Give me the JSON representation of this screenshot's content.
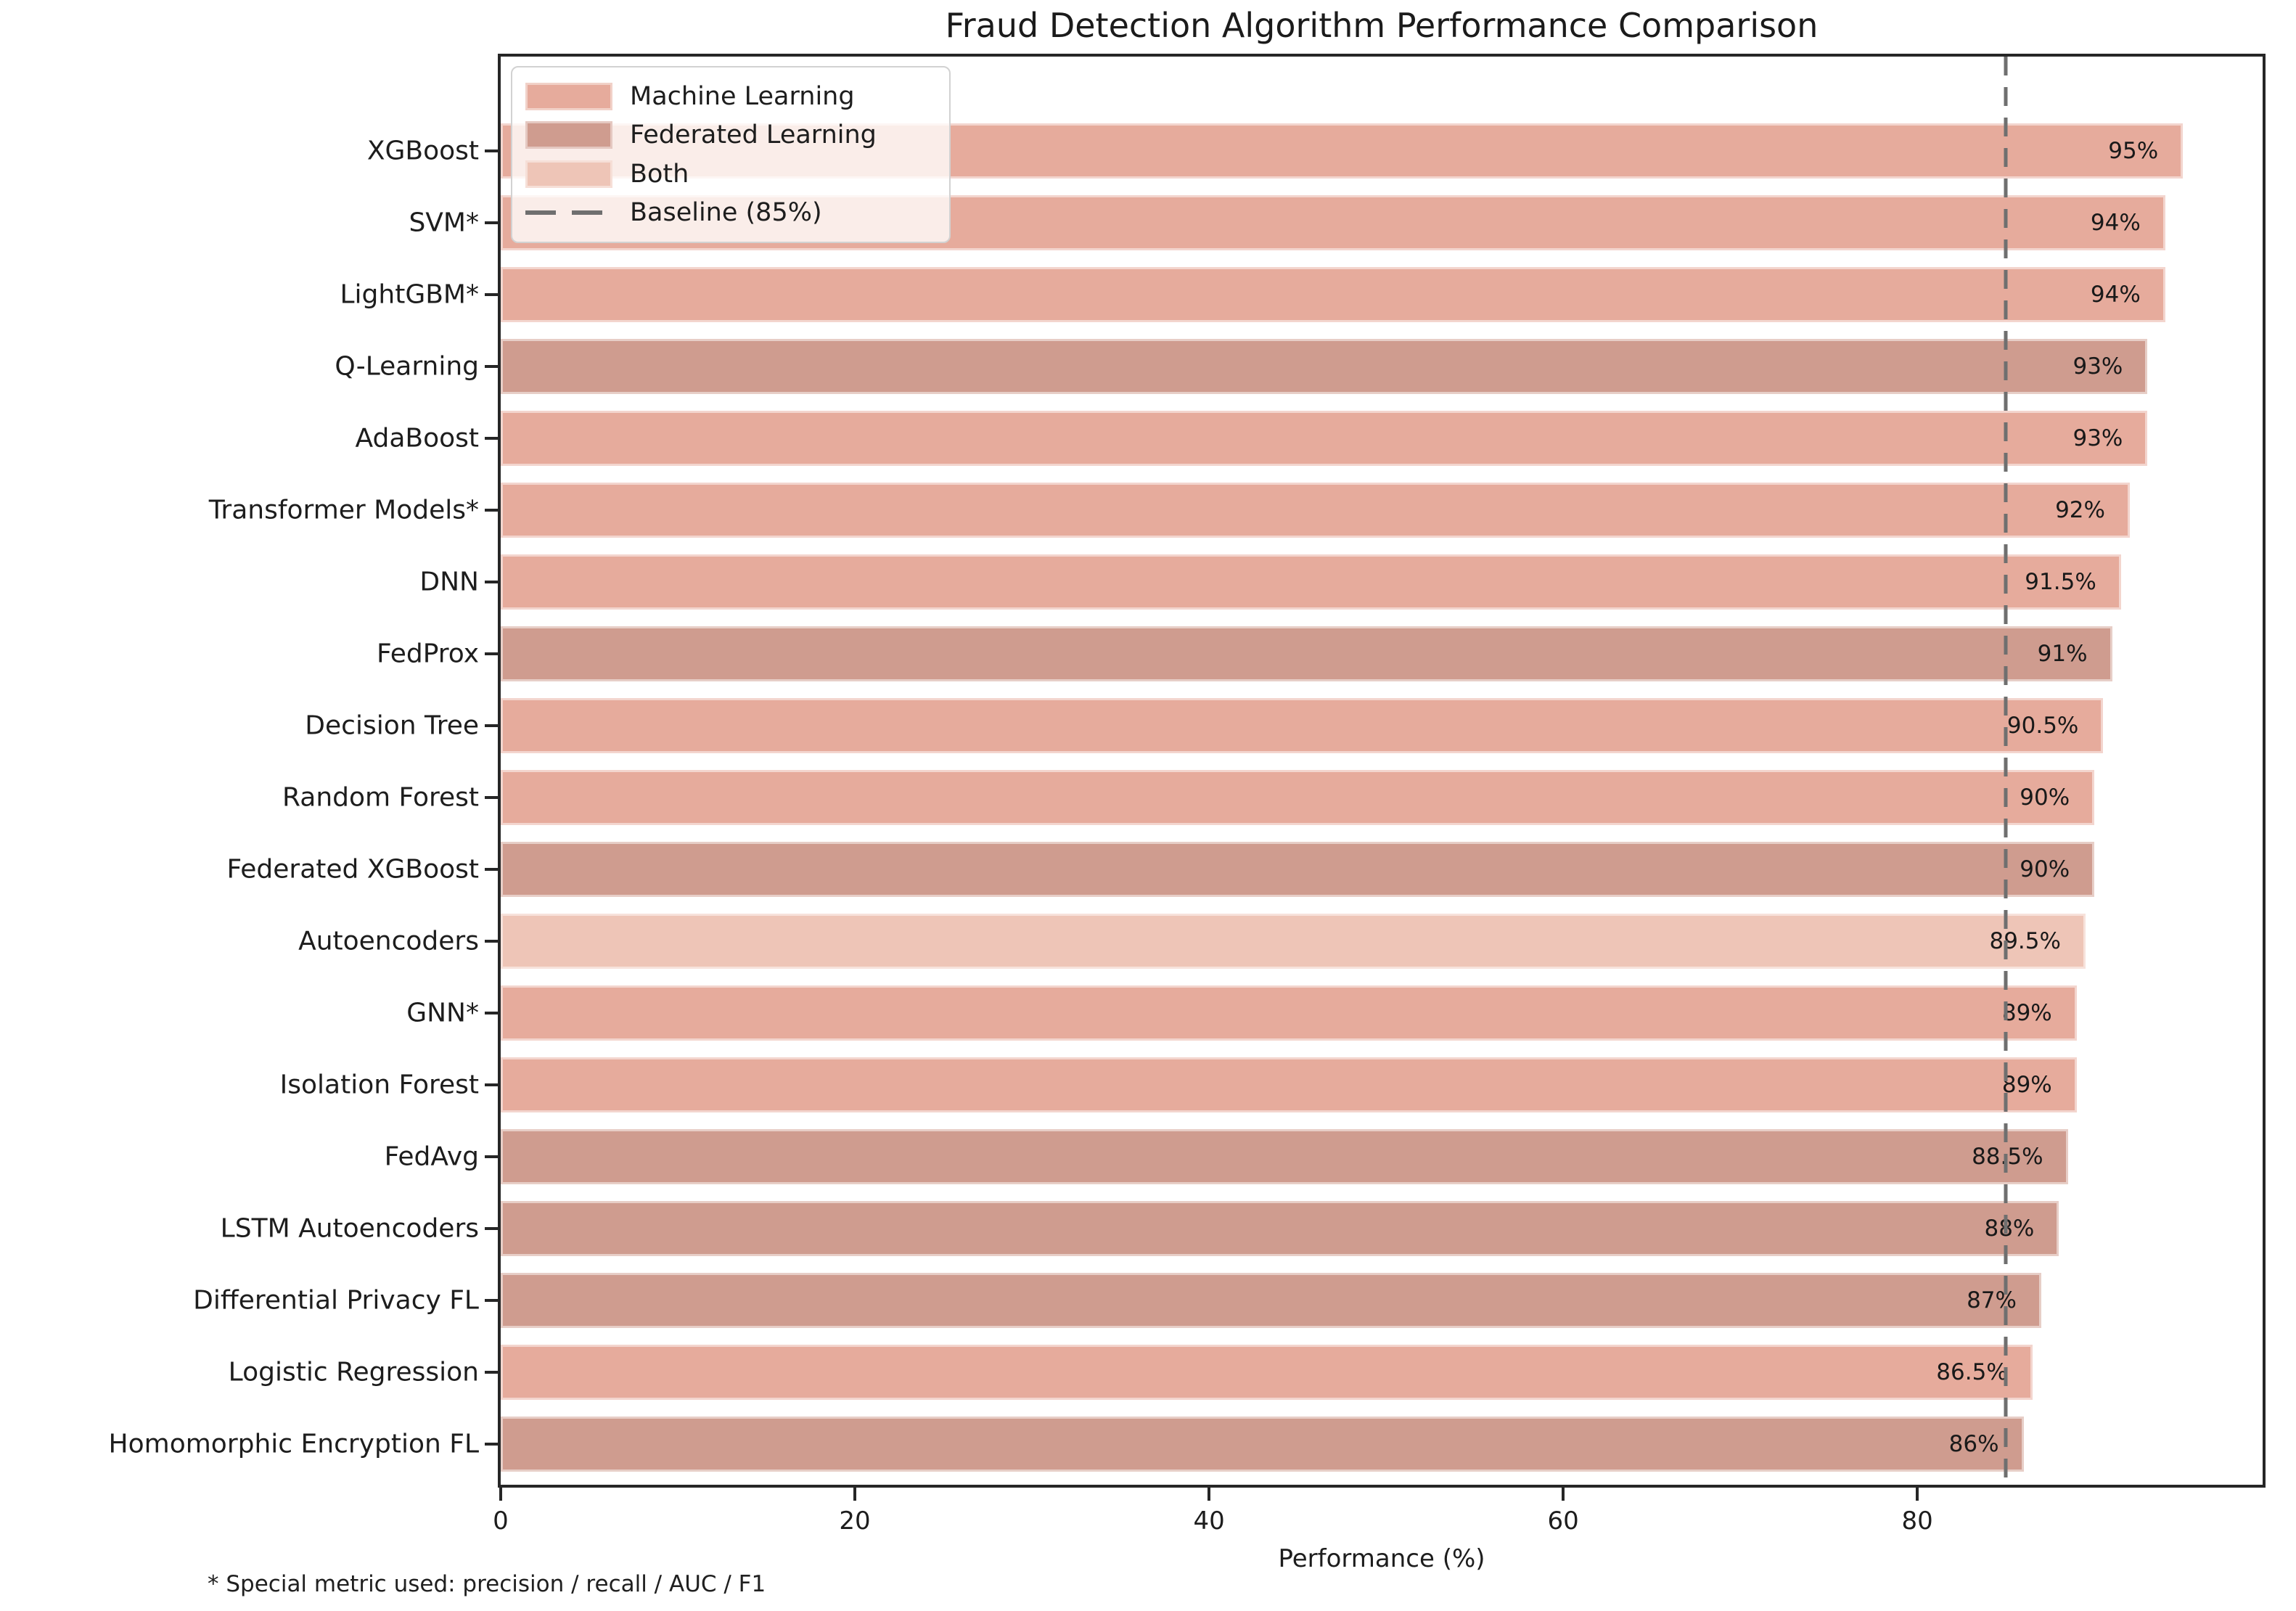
{
  "figure": {
    "title": "Fraud Detection Algorithm Performance Comparison",
    "footnote": "* Special metric used: precision / recall / AUC / F1"
  },
  "chart_data": {
    "type": "bar",
    "orientation": "horizontal",
    "title": "Fraud Detection Algorithm Performance Comparison",
    "xlabel": "Performance (%)",
    "ylabel": "",
    "xlim": [
      0,
      99.5
    ],
    "xticks": [
      0,
      20,
      40,
      60,
      80
    ],
    "grid": false,
    "legend_position": "upper left",
    "baseline": {
      "value": 85,
      "label": "Baseline (85%)"
    },
    "colors": {
      "ml": "#e6ab9c",
      "fl": "#cf9c8f",
      "both": "#eec5b7",
      "baseline": "#6f6f6f"
    },
    "legend": [
      {
        "label": "Machine Learning",
        "swatch": "patch",
        "group": "ml"
      },
      {
        "label": "Federated Learning",
        "swatch": "patch",
        "group": "fl"
      },
      {
        "label": "Both",
        "swatch": "patch",
        "group": "both"
      },
      {
        "label": "Baseline (85%)",
        "swatch": "dashed-line",
        "group": "baseline"
      }
    ],
    "categories": [
      "XGBoost",
      "SVM*",
      "LightGBM*",
      "Q-Learning",
      "AdaBoost",
      "Transformer Models*",
      "DNN",
      "FedProx",
      "Decision Tree",
      "Random Forest",
      "Federated XGBoost",
      "Autoencoders",
      "GNN*",
      "Isolation Forest",
      "FedAvg",
      "LSTM Autoencoders",
      "Differential Privacy FL",
      "Logistic Regression",
      "Homomorphic Encryption FL"
    ],
    "series": [
      {
        "name": "Performance",
        "values": [
          95,
          94,
          94,
          93,
          93,
          92,
          91.5,
          91,
          90.5,
          90,
          90,
          89.5,
          89,
          89,
          88.5,
          88,
          87,
          86.5,
          86
        ],
        "value_labels": [
          "95%",
          "94%",
          "94%",
          "93%",
          "93%",
          "92%",
          "91.5%",
          "91%",
          "90.5%",
          "90%",
          "90%",
          "89.5%",
          "89%",
          "89%",
          "88.5%",
          "88%",
          "87%",
          "86.5%",
          "86%"
        ],
        "groups": [
          "ml",
          "ml",
          "ml",
          "fl",
          "ml",
          "ml",
          "ml",
          "fl",
          "ml",
          "ml",
          "fl",
          "both",
          "ml",
          "ml",
          "fl",
          "fl",
          "fl",
          "ml",
          "fl"
        ]
      }
    ]
  }
}
